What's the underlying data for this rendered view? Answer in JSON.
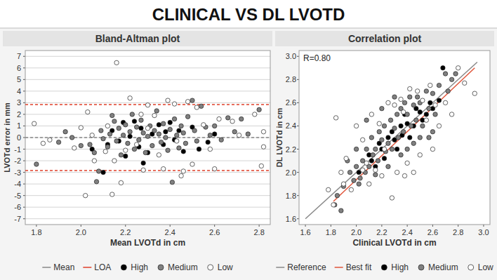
{
  "header": {
    "title": "CLINICAL VS DL LVOTD"
  },
  "chart_data": [
    {
      "type": "scatter",
      "title": "Bland-Altman plot",
      "x_label": "Mean LVOTd in cm",
      "y_label": "LVOTd error in mm",
      "xlim": [
        1.75,
        2.85
      ],
      "ylim": [
        -7.5,
        7.5
      ],
      "xticks": [
        1.8,
        {
          "value": 2,
          "label": "2.0"
        },
        2.2,
        2.4,
        2.6,
        2.8
      ],
      "yticks": [
        -7,
        -6,
        -5,
        -4,
        -3,
        -2,
        -1,
        0,
        1,
        2,
        3,
        4,
        5,
        6,
        7
      ],
      "grid": "y",
      "legend": "bottom",
      "series": [
        {
          "name": "Mean",
          "type": "hline",
          "color": "#888888",
          "line_style": "dashed",
          "values": [
            0
          ]
        },
        {
          "name": "LOA",
          "type": "hline",
          "color": "#e0402a",
          "line_style": "dashed",
          "values": [
            2.85,
            -2.85
          ]
        },
        {
          "name": "High",
          "type": "scatter",
          "marker": "circle",
          "color": "#000000",
          "x": [
            2.05,
            2.1,
            2.14,
            2.17,
            2.19,
            2.2,
            2.22,
            2.24,
            2.26,
            2.27,
            2.3,
            2.32,
            2.35,
            2.37,
            2.4,
            2.42,
            2.44,
            2.46,
            2.5,
            2.53,
            2.57,
            2.6,
            2.12,
            2.28,
            2.38
          ],
          "values": [
            -1.0,
            -3.0,
            0.6,
            -0.3,
            1.3,
            -1.6,
            0.1,
            1.4,
            -0.8,
            0.8,
            -1.3,
            0.3,
            1.1,
            -0.6,
            1.3,
            -0.2,
            0.6,
            -1.2,
            0.9,
            -1.0,
            -0.4,
            0.3,
            -0.6,
            -2.2,
            0.5
          ]
        },
        {
          "name": "Medium",
          "type": "scatter",
          "marker": "circle",
          "color": "#808080",
          "x": [
            1.8,
            1.9,
            1.93,
            1.96,
            2.04,
            2.06,
            2.08,
            2.09,
            2.1,
            2.12,
            2.13,
            2.15,
            2.16,
            2.17,
            2.18,
            2.19,
            2.2,
            2.21,
            2.22,
            2.23,
            2.24,
            2.25,
            2.26,
            2.27,
            2.28,
            2.29,
            2.3,
            2.31,
            2.32,
            2.33,
            2.34,
            2.35,
            2.36,
            2.37,
            2.38,
            2.39,
            2.4,
            2.41,
            2.42,
            2.43,
            2.44,
            2.45,
            2.46,
            2.47,
            2.48,
            2.5,
            2.51,
            2.52,
            2.54,
            2.56,
            2.58,
            2.6,
            2.63,
            2.66,
            2.69,
            2.72,
            2.75,
            2.8,
            2.07,
            2.14,
            2.0
          ],
          "values": [
            -2.3,
            -0.4,
            0.5,
            0,
            -0.6,
            -1.3,
            -2.9,
            0.6,
            -0.1,
            -0.8,
            0.3,
            1.4,
            -0.3,
            0.8,
            -1.5,
            0.2,
            1.1,
            -0.5,
            0.5,
            2.0,
            -1.0,
            0.9,
            -0.2,
            1.5,
            0.4,
            -1.3,
            0.1,
            1.0,
            -0.7,
            0.6,
            2.3,
            0.3,
            -0.4,
            1.2,
            0,
            -1.1,
            0.7,
            -3.85,
            1.6,
            0.2,
            -0.9,
            1.0,
            0.4,
            -0.5,
            1.8,
            3.2,
            0.6,
            -0.3,
            2.7,
            0.9,
            0.2,
            1.0,
            -0.2,
            1.7,
            0.5,
            1.6,
            0.3,
            2.4,
            -3.8,
            1.9,
            -0.7
          ]
        },
        {
          "name": "Low",
          "type": "scatter",
          "marker": "circle",
          "color": "#ffffff",
          "x": [
            2.16,
            2.02,
            2.14,
            2.18,
            2.45,
            2.03,
            2.81,
            2.82,
            2.82,
            1.79,
            2.6,
            2.28,
            2.37,
            2.46,
            2.22,
            2.39,
            2.3,
            2.27,
            2.0,
            1.83,
            1.86,
            2.06,
            2.11,
            2.2,
            2.52,
            2.48,
            2.55,
            2.62,
            2.71,
            2.3,
            2.35,
            2.43,
            2.58,
            2.12,
            2.15,
            2.25,
            2.33,
            2.42,
            2.5,
            2.05,
            1.97,
            2.68,
            2.78
          ],
          "values": [
            6.45,
            -5,
            -4.9,
            -3.9,
            -3.3,
            2.2,
            -2.45,
            -0.8,
            0.5,
            1.2,
            -2.7,
            -2.8,
            -2.7,
            -2.9,
            3.4,
            3.2,
            2.8,
            2.0,
            0.85,
            -0.5,
            -0.2,
            -2.0,
            -1.2,
            -1.1,
            2.6,
            3.1,
            1.1,
            1.6,
            0.2,
            0.8,
            -1.5,
            -0.3,
            -1.0,
            1.0,
            -2.0,
            -0.6,
            1.9,
            2.9,
            -2.3,
            0.2,
            -0.9,
            1.4,
            2.0
          ]
        }
      ]
    },
    {
      "type": "scatter",
      "title": "Correlation plot",
      "x_label": "Clinical LVOTd in cm",
      "y_label": "DL LVOTd in cm",
      "annotation": "R=0.80",
      "xlim": [
        1.55,
        3.05
      ],
      "ylim": [
        1.55,
        3.05
      ],
      "xticks": [
        1.6,
        1.8,
        {
          "value": 2,
          "label": "2.0"
        },
        2.2,
        2.4,
        2.6,
        2.8,
        {
          "value": 3,
          "label": "3.0"
        }
      ],
      "yticks": [
        1.6,
        1.8,
        {
          "value": 2,
          "label": "2.0"
        },
        2.2,
        2.4,
        2.6,
        2.8,
        {
          "value": 3,
          "label": "3.0"
        }
      ],
      "grid": false,
      "legend": "bottom",
      "series": [
        {
          "name": "Reference",
          "type": "line",
          "color": "#888888",
          "line_style": "solid",
          "x": [
            1.6,
            2.95
          ],
          "values": [
            1.6,
            2.95
          ]
        },
        {
          "name": "Best fit",
          "type": "line",
          "color": "#e0553a",
          "line_style": "solid",
          "x": [
            1.82,
            2.93
          ],
          "values": [
            1.75,
            2.9
          ]
        },
        {
          "name": "High",
          "type": "scatter",
          "marker": "circle",
          "color": "#000000",
          "x": [
            2.12,
            2.2,
            2.25,
            2.3,
            2.35,
            2.4,
            2.45,
            2.5,
            2.55,
            2.6,
            2.65,
            2.68,
            2.15,
            2.18,
            2.28,
            2.32,
            2.38,
            2.42,
            2.47,
            2.52,
            2.1,
            2.22,
            2.36,
            2.58,
            2.02
          ],
          "values": [
            2.1,
            2.2,
            2.3,
            2.28,
            2.4,
            2.42,
            2.4,
            2.52,
            2.5,
            2.55,
            2.62,
            2.9,
            2.05,
            2.25,
            2.35,
            2.2,
            2.5,
            2.3,
            2.55,
            2.45,
            2.15,
            2.12,
            2.32,
            2.6,
            2.0
          ]
        },
        {
          "name": "Medium",
          "type": "scatter",
          "marker": "circle",
          "color": "#808080",
          "x": [
            1.83,
            1.85,
            1.9,
            1.95,
            1.98,
            2.0,
            2.03,
            2.05,
            2.07,
            2.08,
            2.1,
            2.12,
            2.13,
            2.15,
            2.17,
            2.18,
            2.2,
            2.22,
            2.23,
            2.25,
            2.27,
            2.28,
            2.3,
            2.32,
            2.33,
            2.35,
            2.37,
            2.38,
            2.4,
            2.42,
            2.43,
            2.45,
            2.47,
            2.48,
            2.5,
            2.52,
            2.55,
            2.57,
            2.6,
            2.62,
            2.65,
            2.7,
            2.72,
            2.75,
            2.78,
            1.88,
            2.02,
            2.15,
            2.25,
            2.4,
            2.5,
            2.6,
            2.08,
            2.2,
            2.3,
            2.45,
            2.35,
            2.57,
            1.93,
            2.0
          ],
          "values": [
            1.72,
            1.8,
            1.88,
            2.0,
            1.93,
            2.05,
            1.95,
            2.1,
            2.0,
            2.2,
            2.05,
            2.3,
            2.15,
            2.2,
            2.1,
            2.35,
            2.28,
            2.4,
            2.18,
            2.25,
            2.45,
            2.2,
            2.38,
            2.5,
            2.3,
            2.55,
            2.35,
            2.6,
            2.5,
            2.65,
            2.4,
            2.58,
            2.45,
            2.65,
            2.6,
            2.4,
            2.7,
            2.55,
            2.68,
            2.5,
            2.75,
            2.85,
            2.7,
            2.8,
            2.85,
            1.67,
            1.9,
            1.98,
            2.05,
            2.2,
            2.3,
            2.35,
            2.45,
            2.55,
            2.65,
            2.25,
            2.15,
            2.3,
            2.1,
            2.2
          ]
        },
        {
          "name": "Low",
          "type": "scatter",
          "marker": "circle",
          "color": "#ffffff",
          "x": [
            1.78,
            1.82,
            1.84,
            1.88,
            1.92,
            1.96,
            2.0,
            2.05,
            2.1,
            2.12,
            2.15,
            2.18,
            2.2,
            2.25,
            2.28,
            2.3,
            2.32,
            2.35,
            2.38,
            2.4,
            2.42,
            2.45,
            2.48,
            2.5,
            2.55,
            2.58,
            2.6,
            2.65,
            2.7,
            2.75,
            2.8,
            2.85,
            2.93,
            2.05,
            2.22,
            2.37,
            2.52,
            2.62,
            1.9,
            2.08
          ],
          "values": [
            1.85,
            1.72,
            2.47,
            2.0,
            2.12,
            1.85,
            2.4,
            2.28,
            1.9,
            2.5,
            2.02,
            2.42,
            1.97,
            2.6,
            1.78,
            2.58,
            2.0,
            2.63,
            1.97,
            2.08,
            2.72,
            2.0,
            2.7,
            2.15,
            2.45,
            2.75,
            2.2,
            2.4,
            2.6,
            2.5,
            2.9,
            2.77,
            2.68,
            2.02,
            2.2,
            2.52,
            2.62,
            2.58,
            1.9,
            2.08
          ]
        }
      ]
    }
  ]
}
